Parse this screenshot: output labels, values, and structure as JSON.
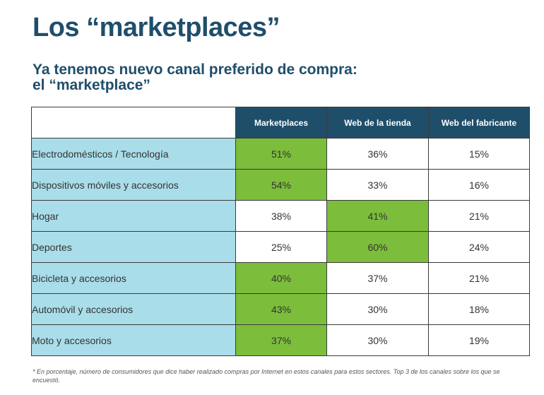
{
  "header": {
    "title": "Los “marketplaces”",
    "subtitle_line1": "Ya tenemos nuevo canal preferido de compra:",
    "subtitle_line2": "el “marketplace”"
  },
  "colors": {
    "header_bg": "#1f4e6b",
    "row_label_bg": "#a9dde9",
    "highlight_green": "#7cbd3c"
  },
  "chart_data": {
    "type": "table",
    "columns": [
      "Marketplaces",
      "Web de la tienda",
      "Web del fabricante"
    ],
    "rows": [
      {
        "label": "Electrodomésticos / Tecnología",
        "values": [
          "51%",
          "36%",
          "15%"
        ],
        "highlight_col": 0
      },
      {
        "label": "Dispositivos móviles y accesorios",
        "values": [
          "54%",
          "33%",
          "16%"
        ],
        "highlight_col": 0
      },
      {
        "label": "Hogar",
        "values": [
          "38%",
          "41%",
          "21%"
        ],
        "highlight_col": 1
      },
      {
        "label": "Deportes",
        "values": [
          "25%",
          "60%",
          "24%"
        ],
        "highlight_col": 1
      },
      {
        "label": "Bicicleta y accesorios",
        "values": [
          "40%",
          "37%",
          "21%"
        ],
        "highlight_col": 0
      },
      {
        "label": "Automóvil y accesorios",
        "values": [
          "43%",
          "30%",
          "18%"
        ],
        "highlight_col": 0
      },
      {
        "label": "Moto y accesorios",
        "values": [
          "37%",
          "30%",
          "19%"
        ],
        "highlight_col": 0
      }
    ]
  },
  "footnote": "* En porcentaje, número de consumidores que dice haber realizado compras por Internet en estos canales para estos sectores. Top 3 de los canales sobre los que se encuestó."
}
